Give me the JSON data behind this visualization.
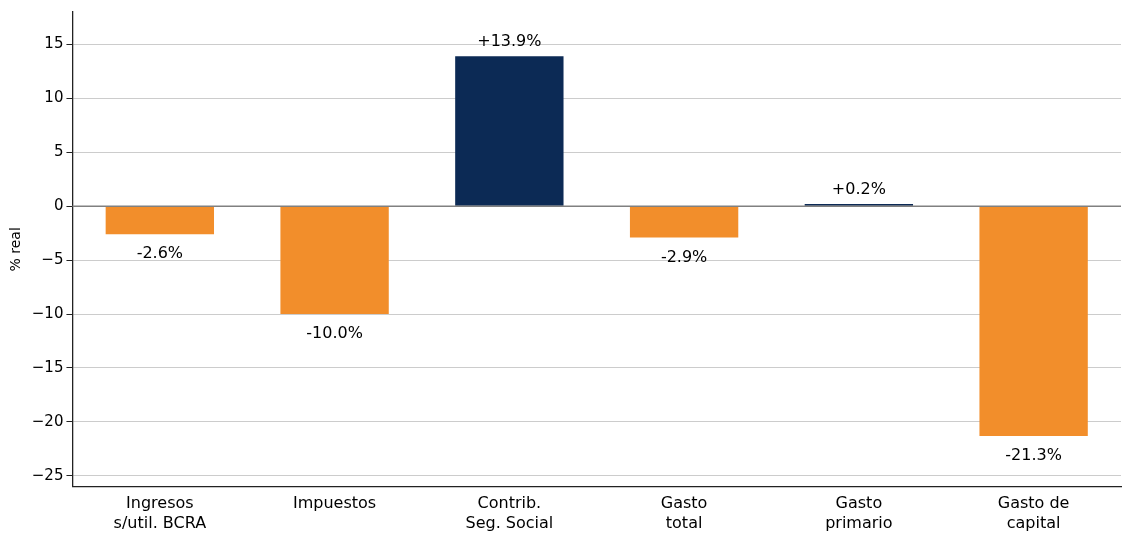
{
  "chart_data": {
    "type": "bar",
    "ylabel": "% real",
    "categories": [
      "Ingresos\ns/util. BCRA",
      "Impuestos",
      "Contrib.\nSeg. Social",
      "Gasto\ntotal",
      "Gasto\nprimario",
      "Gasto de\ncapital"
    ],
    "values": [
      -2.6,
      -10.0,
      13.9,
      -2.9,
      0.2,
      -21.3
    ],
    "colors": [
      "#f28e2b",
      "#f28e2b",
      "#0c2a55",
      "#f28e2b",
      "#0c2a55",
      "#f28e2b"
    ],
    "value_labels": [
      "-2.6%",
      "-10.0%",
      "+13.9%",
      "-2.9%",
      "+0.2%",
      "-21.3%"
    ],
    "ylim": [
      -26,
      18
    ],
    "yticks": [
      {
        "value": -25,
        "label": "−25"
      },
      {
        "value": -20,
        "label": "−20"
      },
      {
        "value": -15,
        "label": "−15"
      },
      {
        "value": -10,
        "label": "−10"
      },
      {
        "value": -5,
        "label": "−5"
      },
      0,
      5,
      10,
      15
    ],
    "grid": "y",
    "legend": false,
    "ref_lines": [
      {
        "axis": "y",
        "value": 0,
        "color": "#808080"
      }
    ]
  }
}
